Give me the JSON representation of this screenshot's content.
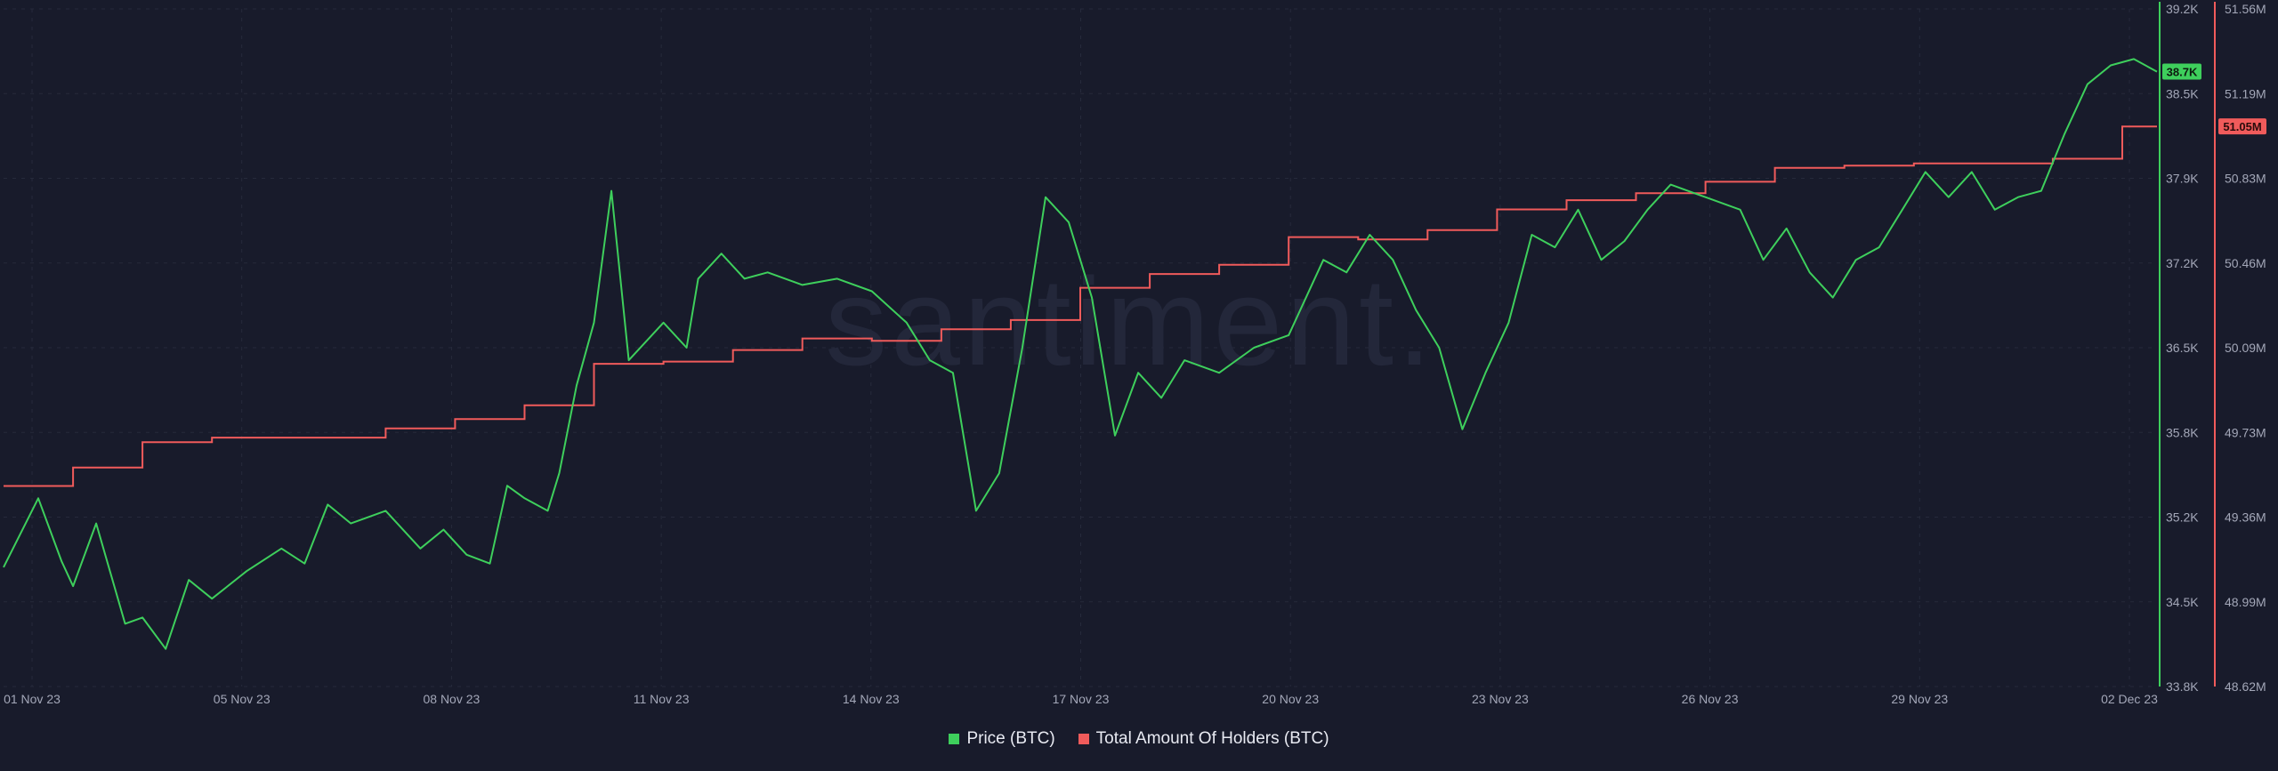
{
  "watermark": "santiment.",
  "colors": {
    "background": "#181b2b",
    "price": "#3ecf5c",
    "holders": "#f05b5b",
    "grid": "#262a3b"
  },
  "chart_data": {
    "type": "line",
    "title": "",
    "x_ticks": [
      "01 Nov 23",
      "05 Nov 23",
      "08 Nov 23",
      "11 Nov 23",
      "14 Nov 23",
      "17 Nov 23",
      "20 Nov 23",
      "23 Nov 23",
      "26 Nov 23",
      "29 Nov 23",
      "02 Dec 23"
    ],
    "x_range": [
      "2023-11-01",
      "2023-12-02"
    ],
    "y_right_inner": {
      "label": "Price (BTC)",
      "range": [
        33800,
        39200
      ],
      "ticks": [
        "39.2K",
        "38.5K",
        "37.9K",
        "37.2K",
        "36.5K",
        "35.8K",
        "35.2K",
        "34.5K",
        "33.8K"
      ],
      "current_badge": "38.7K"
    },
    "y_right_outer": {
      "label": "Total Amount Of Holders (BTC)",
      "range": [
        48.62,
        51.56
      ],
      "unit": "M",
      "ticks": [
        "51.56M",
        "51.19M",
        "50.83M",
        "50.46M",
        "50.09M",
        "49.73M",
        "49.36M",
        "48.99M",
        "48.62M"
      ],
      "current_badge": "51.05M"
    },
    "legend_position": "bottom-center",
    "series": [
      {
        "name": "Price (BTC)",
        "points": [
          [
            "2023-11-01",
            34750
          ],
          [
            "2023-11-01T12:00",
            35300
          ],
          [
            "2023-11-01T20:00",
            34800
          ],
          [
            "2023-11-02",
            34600
          ],
          [
            "2023-11-02T08:00",
            35100
          ],
          [
            "2023-11-02T18:00",
            34300
          ],
          [
            "2023-11-03",
            34350
          ],
          [
            "2023-11-03T08:00",
            34100
          ],
          [
            "2023-11-03T16:00",
            34650
          ],
          [
            "2023-11-04",
            34500
          ],
          [
            "2023-11-04T12:00",
            34720
          ],
          [
            "2023-11-05",
            34900
          ],
          [
            "2023-11-05T08:00",
            34780
          ],
          [
            "2023-11-05T16:00",
            35250
          ],
          [
            "2023-11-06",
            35100
          ],
          [
            "2023-11-06T12:00",
            35200
          ],
          [
            "2023-11-07",
            34900
          ],
          [
            "2023-11-07T08:00",
            35050
          ],
          [
            "2023-11-07T16:00",
            34850
          ],
          [
            "2023-11-08",
            34780
          ],
          [
            "2023-11-08T06:00",
            35400
          ],
          [
            "2023-11-08T12:00",
            35300
          ],
          [
            "2023-11-08T20:00",
            35200
          ],
          [
            "2023-11-09",
            35500
          ],
          [
            "2023-11-09T06:00",
            36200
          ],
          [
            "2023-11-09T12:00",
            36700
          ],
          [
            "2023-11-09T18:00",
            37750
          ],
          [
            "2023-11-10",
            36400
          ],
          [
            "2023-11-10T12:00",
            36700
          ],
          [
            "2023-11-10T20:00",
            36500
          ],
          [
            "2023-11-11",
            37050
          ],
          [
            "2023-11-11T08:00",
            37250
          ],
          [
            "2023-11-11T16:00",
            37050
          ],
          [
            "2023-11-12",
            37100
          ],
          [
            "2023-11-12T12:00",
            37000
          ],
          [
            "2023-11-13",
            37050
          ],
          [
            "2023-11-13T12:00",
            36950
          ],
          [
            "2023-11-14",
            36700
          ],
          [
            "2023-11-14T08:00",
            36400
          ],
          [
            "2023-11-14T16:00",
            36300
          ],
          [
            "2023-11-15",
            35200
          ],
          [
            "2023-11-15T08:00",
            35500
          ],
          [
            "2023-11-15T16:00",
            36500
          ],
          [
            "2023-11-16",
            37700
          ],
          [
            "2023-11-16T08:00",
            37500
          ],
          [
            "2023-11-16T16:00",
            36900
          ],
          [
            "2023-11-17",
            35800
          ],
          [
            "2023-11-17T08:00",
            36300
          ],
          [
            "2023-11-17T16:00",
            36100
          ],
          [
            "2023-11-18",
            36400
          ],
          [
            "2023-11-18T12:00",
            36300
          ],
          [
            "2023-11-19",
            36500
          ],
          [
            "2023-11-19T12:00",
            36600
          ],
          [
            "2023-11-20",
            37200
          ],
          [
            "2023-11-20T08:00",
            37100
          ],
          [
            "2023-11-20T16:00",
            37400
          ],
          [
            "2023-11-21",
            37200
          ],
          [
            "2023-11-21T08:00",
            36800
          ],
          [
            "2023-11-21T16:00",
            36500
          ],
          [
            "2023-11-22",
            35850
          ],
          [
            "2023-11-22T08:00",
            36300
          ],
          [
            "2023-11-22T16:00",
            36700
          ],
          [
            "2023-11-23",
            37400
          ],
          [
            "2023-11-23T08:00",
            37300
          ],
          [
            "2023-11-23T16:00",
            37600
          ],
          [
            "2023-11-24",
            37200
          ],
          [
            "2023-11-24T08:00",
            37350
          ],
          [
            "2023-11-24T16:00",
            37600
          ],
          [
            "2023-11-25",
            37800
          ],
          [
            "2023-11-25T12:00",
            37700
          ],
          [
            "2023-11-26",
            37600
          ],
          [
            "2023-11-26T08:00",
            37200
          ],
          [
            "2023-11-26T16:00",
            37450
          ],
          [
            "2023-11-27",
            37100
          ],
          [
            "2023-11-27T08:00",
            36900
          ],
          [
            "2023-11-27T16:00",
            37200
          ],
          [
            "2023-11-28",
            37300
          ],
          [
            "2023-11-28T08:00",
            37600
          ],
          [
            "2023-11-28T16:00",
            37900
          ],
          [
            "2023-11-29",
            37700
          ],
          [
            "2023-11-29T08:00",
            37900
          ],
          [
            "2023-11-29T16:00",
            37600
          ],
          [
            "2023-11-30",
            37700
          ],
          [
            "2023-11-30T08:00",
            37750
          ],
          [
            "2023-11-30T16:00",
            38200
          ],
          [
            "2023-12-01",
            38600
          ],
          [
            "2023-12-01T08:00",
            38750
          ],
          [
            "2023-12-01T16:00",
            38800
          ],
          [
            "2023-12-02",
            38700
          ]
        ]
      },
      {
        "name": "Total Amount Of Holders (BTC)",
        "step": true,
        "points": [
          [
            "2023-11-01",
            49.49
          ],
          [
            "2023-11-02",
            49.57
          ],
          [
            "2023-11-03",
            49.68
          ],
          [
            "2023-11-04",
            49.7
          ],
          [
            "2023-11-06",
            49.7
          ],
          [
            "2023-11-06T12:00",
            49.74
          ],
          [
            "2023-11-07T12:00",
            49.78
          ],
          [
            "2023-11-08T12:00",
            49.84
          ],
          [
            "2023-11-09T12:00",
            50.02
          ],
          [
            "2023-11-10T12:00",
            50.03
          ],
          [
            "2023-11-11T12:00",
            50.08
          ],
          [
            "2023-11-12T12:00",
            50.13
          ],
          [
            "2023-11-13T12:00",
            50.12
          ],
          [
            "2023-11-14T12:00",
            50.17
          ],
          [
            "2023-11-15T12:00",
            50.21
          ],
          [
            "2023-11-16T12:00",
            50.35
          ],
          [
            "2023-11-17T12:00",
            50.41
          ],
          [
            "2023-11-18T12:00",
            50.45
          ],
          [
            "2023-11-19T12:00",
            50.57
          ],
          [
            "2023-11-20T12:00",
            50.56
          ],
          [
            "2023-11-21T12:00",
            50.6
          ],
          [
            "2023-11-22T12:00",
            50.69
          ],
          [
            "2023-11-23T12:00",
            50.73
          ],
          [
            "2023-11-24T12:00",
            50.76
          ],
          [
            "2023-11-25T12:00",
            50.81
          ],
          [
            "2023-11-26T12:00",
            50.87
          ],
          [
            "2023-11-27T12:00",
            50.88
          ],
          [
            "2023-11-28T12:00",
            50.89
          ],
          [
            "2023-11-29T12:00",
            50.89
          ],
          [
            "2023-11-30T12:00",
            50.91
          ],
          [
            "2023-12-01T12:00",
            51.05
          ],
          [
            "2023-12-02",
            51.05
          ]
        ]
      }
    ]
  },
  "legend": {
    "items": [
      {
        "label": "Price (BTC)",
        "color": "#3ecf5c"
      },
      {
        "label": "Total Amount Of Holders (BTC)",
        "color": "#f05b5b"
      }
    ]
  }
}
